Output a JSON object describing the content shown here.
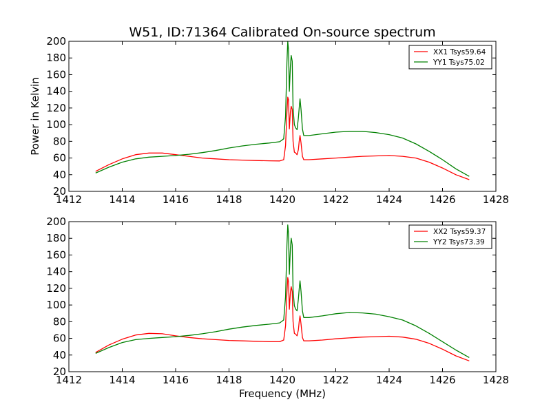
{
  "chart_data": [
    {
      "type": "line",
      "title": "W51, ID:71364 Calibrated On-source spectrum",
      "xlabel": "",
      "ylabel": "Power in Kelvin",
      "xlim": [
        1412,
        1428
      ],
      "ylim": [
        20,
        200
      ],
      "xticks": [
        1412,
        1414,
        1416,
        1418,
        1420,
        1422,
        1424,
        1426,
        1428
      ],
      "yticks": [
        20,
        40,
        60,
        80,
        100,
        120,
        140,
        160,
        180,
        200
      ],
      "grid": false,
      "legend": "top-right",
      "series": [
        {
          "name": "XX1 Tsys59.64",
          "color": "#ff0000",
          "points": [
            [
              1413.0,
              44
            ],
            [
              1413.5,
              52
            ],
            [
              1414.0,
              59
            ],
            [
              1414.5,
              64
            ],
            [
              1415.0,
              66
            ],
            [
              1415.5,
              66
            ],
            [
              1416.0,
              64
            ],
            [
              1416.5,
              62
            ],
            [
              1417.0,
              60
            ],
            [
              1417.5,
              59
            ],
            [
              1418.0,
              58
            ],
            [
              1418.5,
              57.5
            ],
            [
              1419.0,
              57
            ],
            [
              1419.5,
              56.7
            ],
            [
              1419.9,
              56.5
            ],
            [
              1420.05,
              58
            ],
            [
              1420.12,
              75
            ],
            [
              1420.17,
              115
            ],
            [
              1420.2,
              133
            ],
            [
              1420.23,
              130
            ],
            [
              1420.26,
              95
            ],
            [
              1420.3,
              115
            ],
            [
              1420.33,
              122
            ],
            [
              1420.37,
              118
            ],
            [
              1420.4,
              80
            ],
            [
              1420.45,
              67
            ],
            [
              1420.5,
              66
            ],
            [
              1420.55,
              64
            ],
            [
              1420.6,
              70
            ],
            [
              1420.63,
              80
            ],
            [
              1420.66,
              87
            ],
            [
              1420.7,
              78
            ],
            [
              1420.75,
              62
            ],
            [
              1420.8,
              58
            ],
            [
              1421.0,
              58
            ],
            [
              1421.5,
              59
            ],
            [
              1422.0,
              60
            ],
            [
              1422.5,
              61
            ],
            [
              1423.0,
              62
            ],
            [
              1423.5,
              62.5
            ],
            [
              1424.0,
              63
            ],
            [
              1424.5,
              62
            ],
            [
              1425.0,
              60
            ],
            [
              1425.5,
              55
            ],
            [
              1426.0,
              48
            ],
            [
              1426.5,
              40
            ],
            [
              1427.0,
              34
            ]
          ]
        },
        {
          "name": "YY1 Tsys75.02",
          "color": "#008000",
          "points": [
            [
              1413.0,
              42
            ],
            [
              1413.5,
              49
            ],
            [
              1414.0,
              55
            ],
            [
              1414.5,
              59
            ],
            [
              1415.0,
              61
            ],
            [
              1415.5,
              62
            ],
            [
              1416.0,
              63
            ],
            [
              1416.5,
              64.5
            ],
            [
              1417.0,
              66.5
            ],
            [
              1417.5,
              69
            ],
            [
              1418.0,
              72
            ],
            [
              1418.5,
              74.5
            ],
            [
              1419.0,
              76.5
            ],
            [
              1419.5,
              78
            ],
            [
              1419.9,
              79.5
            ],
            [
              1420.05,
              83
            ],
            [
              1420.12,
              110
            ],
            [
              1420.17,
              175
            ],
            [
              1420.2,
              200
            ],
            [
              1420.23,
              190
            ],
            [
              1420.26,
              140
            ],
            [
              1420.3,
              170
            ],
            [
              1420.33,
              183
            ],
            [
              1420.37,
              176
            ],
            [
              1420.4,
              120
            ],
            [
              1420.45,
              100
            ],
            [
              1420.5,
              96
            ],
            [
              1420.55,
              94
            ],
            [
              1420.6,
              108
            ],
            [
              1420.63,
              120
            ],
            [
              1420.66,
              131
            ],
            [
              1420.7,
              118
            ],
            [
              1420.75,
              95
            ],
            [
              1420.8,
              87
            ],
            [
              1421.0,
              87
            ],
            [
              1421.5,
              89
            ],
            [
              1422.0,
              91
            ],
            [
              1422.5,
              92
            ],
            [
              1423.0,
              92
            ],
            [
              1423.5,
              90.5
            ],
            [
              1424.0,
              88
            ],
            [
              1424.5,
              84
            ],
            [
              1425.0,
              77
            ],
            [
              1425.5,
              68
            ],
            [
              1426.0,
              58
            ],
            [
              1426.5,
              47
            ],
            [
              1427.0,
              38
            ]
          ]
        }
      ]
    },
    {
      "type": "line",
      "title": "",
      "xlabel": "Frequency (MHz)",
      "ylabel": "",
      "xlim": [
        1412,
        1428
      ],
      "ylim": [
        20,
        200
      ],
      "xticks": [
        1412,
        1414,
        1416,
        1418,
        1420,
        1422,
        1424,
        1426,
        1428
      ],
      "yticks": [
        20,
        40,
        60,
        80,
        100,
        120,
        140,
        160,
        180,
        200
      ],
      "grid": false,
      "legend": "top-right",
      "series": [
        {
          "name": "XX2 Tsys59.37",
          "color": "#ff0000",
          "points": [
            [
              1413.0,
              43
            ],
            [
              1413.5,
              52
            ],
            [
              1414.0,
              59
            ],
            [
              1414.5,
              64
            ],
            [
              1415.0,
              66
            ],
            [
              1415.5,
              65.5
            ],
            [
              1416.0,
              63
            ],
            [
              1416.5,
              61
            ],
            [
              1417.0,
              59.5
            ],
            [
              1417.5,
              58.5
            ],
            [
              1418.0,
              57.5
            ],
            [
              1418.5,
              57
            ],
            [
              1419.0,
              56.5
            ],
            [
              1419.5,
              56
            ],
            [
              1419.9,
              56
            ],
            [
              1420.05,
              58
            ],
            [
              1420.12,
              75
            ],
            [
              1420.17,
              115
            ],
            [
              1420.2,
              133
            ],
            [
              1420.23,
              128
            ],
            [
              1420.26,
              95
            ],
            [
              1420.3,
              115
            ],
            [
              1420.33,
              122
            ],
            [
              1420.37,
              116
            ],
            [
              1420.4,
              80
            ],
            [
              1420.45,
              66
            ],
            [
              1420.5,
              65
            ],
            [
              1420.55,
              63
            ],
            [
              1420.6,
              70
            ],
            [
              1420.63,
              80
            ],
            [
              1420.66,
              87
            ],
            [
              1420.7,
              77
            ],
            [
              1420.75,
              61
            ],
            [
              1420.8,
              57
            ],
            [
              1421.0,
              57
            ],
            [
              1421.5,
              58
            ],
            [
              1422.0,
              59.5
            ],
            [
              1422.5,
              60.5
            ],
            [
              1423.0,
              61.5
            ],
            [
              1423.5,
              62
            ],
            [
              1424.0,
              62.5
            ],
            [
              1424.5,
              61.5
            ],
            [
              1425.0,
              59
            ],
            [
              1425.5,
              54
            ],
            [
              1426.0,
              47
            ],
            [
              1426.5,
              39
            ],
            [
              1427.0,
              33
            ]
          ]
        },
        {
          "name": "YY2 Tsys73.39",
          "color": "#008000",
          "points": [
            [
              1413.0,
              42
            ],
            [
              1413.5,
              49
            ],
            [
              1414.0,
              55
            ],
            [
              1414.5,
              58.5
            ],
            [
              1415.0,
              60
            ],
            [
              1415.5,
              61
            ],
            [
              1416.0,
              62
            ],
            [
              1416.5,
              63.5
            ],
            [
              1417.0,
              65.5
            ],
            [
              1417.5,
              68
            ],
            [
              1418.0,
              71
            ],
            [
              1418.5,
              73.5
            ],
            [
              1419.0,
              75.5
            ],
            [
              1419.5,
              77
            ],
            [
              1419.9,
              78.5
            ],
            [
              1420.05,
              82
            ],
            [
              1420.12,
              110
            ],
            [
              1420.17,
              172
            ],
            [
              1420.2,
              196
            ],
            [
              1420.23,
              186
            ],
            [
              1420.26,
              137
            ],
            [
              1420.3,
              168
            ],
            [
              1420.33,
              180
            ],
            [
              1420.37,
              172
            ],
            [
              1420.4,
              118
            ],
            [
              1420.45,
              99
            ],
            [
              1420.5,
              95
            ],
            [
              1420.55,
              93
            ],
            [
              1420.6,
              107
            ],
            [
              1420.63,
              119
            ],
            [
              1420.66,
              129
            ],
            [
              1420.7,
              116
            ],
            [
              1420.75,
              93
            ],
            [
              1420.8,
              85
            ],
            [
              1421.0,
              85
            ],
            [
              1421.5,
              87
            ],
            [
              1422.0,
              89.5
            ],
            [
              1422.5,
              91
            ],
            [
              1423.0,
              90.5
            ],
            [
              1423.5,
              89
            ],
            [
              1424.0,
              86
            ],
            [
              1424.5,
              82
            ],
            [
              1425.0,
              75
            ],
            [
              1425.5,
              66
            ],
            [
              1426.0,
              56
            ],
            [
              1426.5,
              46
            ],
            [
              1427.0,
              37
            ]
          ]
        }
      ]
    }
  ]
}
